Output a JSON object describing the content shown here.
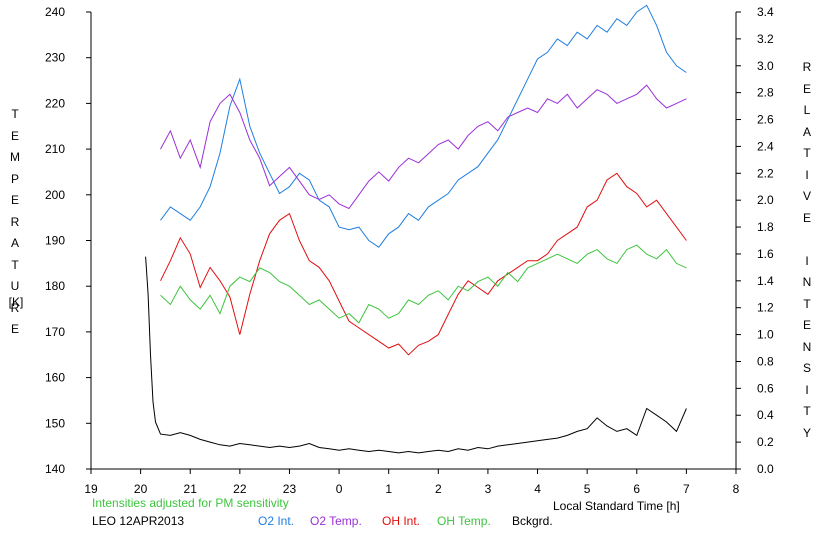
{
  "chart_data": {
    "type": "line",
    "left_axis": {
      "label": "TEMPERATURE",
      "unit": "[K]",
      "ylim": [
        140,
        240
      ],
      "ticks": [
        140,
        150,
        160,
        170,
        180,
        190,
        200,
        210,
        220,
        230,
        240
      ]
    },
    "right_axis": {
      "label": "RELATIVE INTENSITY",
      "ylim": [
        0.0,
        3.4
      ],
      "ticks": [
        "0.0",
        "0.2",
        "0.4",
        "0.6",
        "0.8",
        "1.0",
        "1.2",
        "1.4",
        "1.6",
        "1.8",
        "2.0",
        "2.2",
        "2.4",
        "2.6",
        "2.8",
        "3.0",
        "3.2",
        "3.4"
      ]
    },
    "x_axis": {
      "label": "Local Standard Time [h]",
      "xlim": [
        19,
        32
      ],
      "tick_labels": [
        "19",
        "20",
        "21",
        "22",
        "23",
        "0",
        "1",
        "2",
        "3",
        "4",
        "5",
        "6",
        "7",
        "8"
      ]
    },
    "series": [
      {
        "name": "O2 Int.",
        "axis": "right",
        "color": "#1f7fe0",
        "x": [
          20.4,
          20.6,
          20.8,
          21.0,
          21.2,
          21.4,
          21.6,
          21.8,
          22.0,
          22.2,
          22.4,
          22.6,
          22.8,
          23.0,
          23.2,
          23.4,
          23.6,
          23.8,
          24.0,
          24.2,
          24.4,
          24.6,
          24.8,
          25.0,
          25.2,
          25.4,
          25.6,
          25.8,
          26.0,
          26.2,
          26.4,
          26.6,
          26.8,
          27.0,
          27.2,
          27.4,
          27.6,
          27.8,
          28.0,
          28.2,
          28.4,
          28.6,
          28.8,
          29.0,
          29.2,
          29.4,
          29.6,
          29.8,
          30.0,
          30.2,
          30.4,
          30.6,
          30.8,
          31.0
        ],
        "y": [
          1.85,
          1.95,
          1.9,
          1.85,
          1.95,
          2.1,
          2.35,
          2.7,
          2.9,
          2.55,
          2.35,
          2.2,
          2.05,
          2.1,
          2.2,
          2.15,
          2.0,
          1.95,
          1.8,
          1.78,
          1.8,
          1.7,
          1.65,
          1.75,
          1.8,
          1.9,
          1.85,
          1.95,
          2.0,
          2.05,
          2.15,
          2.2,
          2.25,
          2.35,
          2.45,
          2.6,
          2.75,
          2.9,
          3.05,
          3.1,
          3.2,
          3.15,
          3.25,
          3.2,
          3.3,
          3.25,
          3.35,
          3.3,
          3.4,
          3.45,
          3.3,
          3.1,
          3.0,
          2.95
        ]
      },
      {
        "name": "O2 Temp.",
        "axis": "left",
        "color": "#9b30d8",
        "x": [
          20.4,
          20.6,
          20.8,
          21.0,
          21.2,
          21.4,
          21.6,
          21.8,
          22.0,
          22.2,
          22.4,
          22.6,
          22.8,
          23.0,
          23.2,
          23.4,
          23.6,
          23.8,
          24.0,
          24.2,
          24.4,
          24.6,
          24.8,
          25.0,
          25.2,
          25.4,
          25.6,
          25.8,
          26.0,
          26.2,
          26.4,
          26.6,
          26.8,
          27.0,
          27.2,
          27.4,
          27.6,
          27.8,
          28.0,
          28.2,
          28.4,
          28.6,
          28.8,
          29.0,
          29.2,
          29.4,
          29.6,
          29.8,
          30.0,
          30.2,
          30.4,
          30.6,
          30.8,
          31.0
        ],
        "y": [
          210,
          214,
          208,
          212,
          206,
          216,
          220,
          222,
          218,
          212,
          208,
          202,
          204,
          206,
          203,
          200,
          199,
          200,
          198,
          197,
          200,
          203,
          205,
          203,
          206,
          208,
          207,
          209,
          211,
          212,
          210,
          213,
          215,
          216,
          214,
          217,
          218,
          219,
          218,
          221,
          220,
          222,
          219,
          221,
          223,
          222,
          220,
          221,
          222,
          224,
          221,
          219,
          220,
          221
        ]
      },
      {
        "name": "OH Int.",
        "axis": "right",
        "color": "#e01010",
        "x": [
          20.4,
          20.6,
          20.8,
          21.0,
          21.2,
          21.4,
          21.6,
          21.8,
          22.0,
          22.2,
          22.4,
          22.6,
          22.8,
          23.0,
          23.2,
          23.4,
          23.6,
          23.8,
          24.0,
          24.2,
          24.4,
          24.6,
          24.8,
          25.0,
          25.2,
          25.4,
          25.6,
          25.8,
          26.0,
          26.2,
          26.4,
          26.6,
          26.8,
          27.0,
          27.2,
          27.4,
          27.6,
          27.8,
          28.0,
          28.2,
          28.4,
          28.6,
          28.8,
          29.0,
          29.2,
          29.4,
          29.6,
          29.8,
          30.0,
          30.2,
          30.4,
          30.6,
          30.8,
          31.0
        ],
        "y": [
          1.4,
          1.55,
          1.72,
          1.6,
          1.35,
          1.5,
          1.4,
          1.28,
          1.0,
          1.3,
          1.55,
          1.75,
          1.85,
          1.9,
          1.7,
          1.55,
          1.5,
          1.4,
          1.25,
          1.1,
          1.05,
          1.0,
          0.95,
          0.9,
          0.93,
          0.85,
          0.92,
          0.95,
          1.0,
          1.15,
          1.3,
          1.4,
          1.35,
          1.3,
          1.4,
          1.45,
          1.5,
          1.55,
          1.55,
          1.6,
          1.7,
          1.75,
          1.8,
          1.95,
          2.0,
          2.15,
          2.2,
          2.1,
          2.05,
          1.95,
          2.0,
          1.9,
          1.8,
          1.7
        ]
      },
      {
        "name": "OH Temp.",
        "axis": "left",
        "color": "#3ec43e",
        "x": [
          20.4,
          20.6,
          20.8,
          21.0,
          21.2,
          21.4,
          21.6,
          21.8,
          22.0,
          22.2,
          22.4,
          22.6,
          22.8,
          23.0,
          23.2,
          23.4,
          23.6,
          23.8,
          24.0,
          24.2,
          24.4,
          24.6,
          24.8,
          25.0,
          25.2,
          25.4,
          25.6,
          25.8,
          26.0,
          26.2,
          26.4,
          26.6,
          26.8,
          27.0,
          27.2,
          27.4,
          27.6,
          27.8,
          28.0,
          28.2,
          28.4,
          28.6,
          28.8,
          29.0,
          29.2,
          29.4,
          29.6,
          29.8,
          30.0,
          30.2,
          30.4,
          30.6,
          30.8,
          31.0
        ],
        "y": [
          178,
          176,
          180,
          177,
          175,
          178,
          174,
          180,
          182,
          181,
          184,
          183,
          181,
          180,
          178,
          176,
          177,
          175,
          173,
          174,
          172,
          176,
          175,
          173,
          174,
          177,
          176,
          178,
          179,
          177,
          180,
          179,
          181,
          182,
          180,
          183,
          181,
          184,
          185,
          186,
          187,
          186,
          185,
          187,
          188,
          186,
          185,
          188,
          189,
          187,
          186,
          188,
          185,
          184
        ]
      },
      {
        "name": "Bckgrd.",
        "axis": "right",
        "color": "#000000",
        "x": [
          20.1,
          20.15,
          20.2,
          20.25,
          20.3,
          20.4,
          20.6,
          20.8,
          21.0,
          21.2,
          21.4,
          21.6,
          21.8,
          22.0,
          22.2,
          22.4,
          22.6,
          22.8,
          23.0,
          23.2,
          23.4,
          23.6,
          23.8,
          24.0,
          24.2,
          24.4,
          24.6,
          24.8,
          25.0,
          25.2,
          25.4,
          25.6,
          25.8,
          26.0,
          26.2,
          26.4,
          26.6,
          26.8,
          27.0,
          27.2,
          27.4,
          27.6,
          27.8,
          28.0,
          28.2,
          28.4,
          28.6,
          28.8,
          29.0,
          29.2,
          29.4,
          29.6,
          29.8,
          30.0,
          30.2,
          30.4,
          30.6,
          30.8,
          31.0
        ],
        "y": [
          1.58,
          1.3,
          0.85,
          0.5,
          0.35,
          0.26,
          0.25,
          0.27,
          0.25,
          0.22,
          0.2,
          0.18,
          0.17,
          0.19,
          0.18,
          0.17,
          0.16,
          0.17,
          0.16,
          0.17,
          0.19,
          0.16,
          0.15,
          0.14,
          0.15,
          0.14,
          0.13,
          0.14,
          0.13,
          0.12,
          0.13,
          0.12,
          0.13,
          0.14,
          0.13,
          0.15,
          0.14,
          0.16,
          0.15,
          0.17,
          0.18,
          0.19,
          0.2,
          0.21,
          0.22,
          0.23,
          0.25,
          0.28,
          0.3,
          0.38,
          0.32,
          0.28,
          0.3,
          0.25,
          0.45,
          0.4,
          0.35,
          0.28,
          0.45
        ]
      }
    ],
    "grid": false,
    "legend": "bottom"
  },
  "footer": {
    "note": "Intensities adjusted for PM sensitivity",
    "station": "LEO 12APR2013"
  },
  "colors": {
    "note": "#3ec43e",
    "axis": "#000000"
  }
}
